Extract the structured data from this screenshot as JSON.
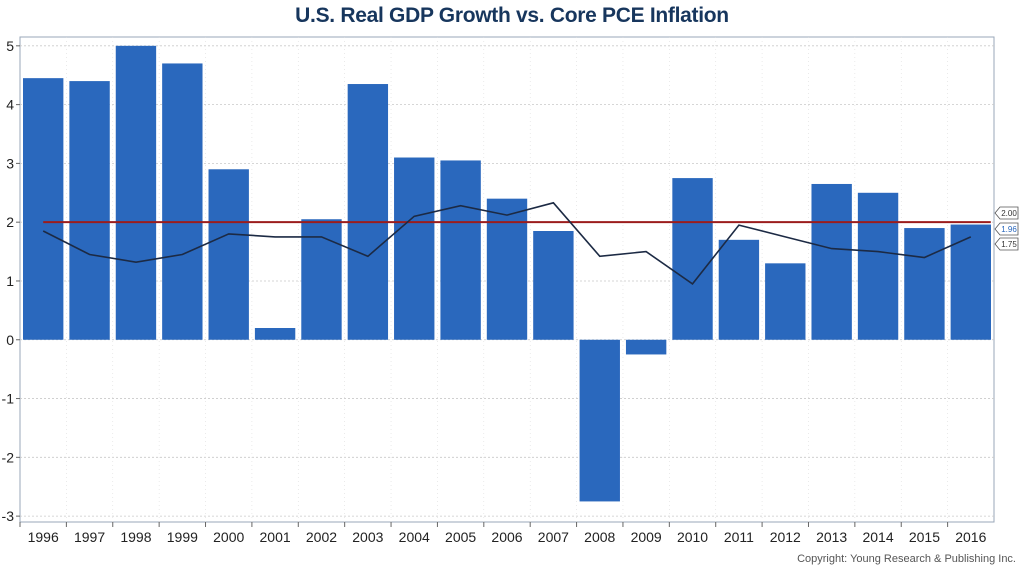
{
  "title": "U.S. Real GDP Growth vs. Core PCE Inflation",
  "copyright": "Copyright: Young Research & Publishing Inc.",
  "colors": {
    "bars": "#2a68bd",
    "inflation_line": "#1c2a44",
    "target_line": "#9b1c1c",
    "title": "#17365d"
  },
  "chart_data": {
    "type": "bar",
    "title": "U.S. Real GDP Growth vs. Core PCE Inflation",
    "categories": [
      "1996",
      "1997",
      "1998",
      "1999",
      "2000",
      "2001",
      "2002",
      "2003",
      "2004",
      "2005",
      "2006",
      "2007",
      "2008",
      "2009",
      "2010",
      "2011",
      "2012",
      "2013",
      "2014",
      "2015",
      "2016"
    ],
    "ylim": [
      -3.1,
      5.15
    ],
    "yticks": [
      5,
      4,
      3,
      2,
      1,
      0,
      -1,
      -2,
      -3
    ],
    "grid": true,
    "series": [
      {
        "kind": "bar",
        "values": [
          4.45,
          4.4,
          5.0,
          4.7,
          2.9,
          0.2,
          2.05,
          4.35,
          3.1,
          3.05,
          2.4,
          1.85,
          -2.75,
          -0.25,
          2.75,
          1.7,
          1.3,
          2.65,
          2.5,
          1.9,
          1.96
        ]
      },
      {
        "kind": "line",
        "values": [
          1.85,
          1.45,
          1.32,
          1.45,
          1.8,
          1.75,
          1.75,
          1.42,
          2.1,
          2.28,
          2.12,
          2.33,
          1.42,
          1.5,
          0.95,
          1.95,
          1.75,
          1.55,
          1.5,
          1.4,
          1.75
        ]
      },
      {
        "kind": "hline",
        "value": 2.0
      }
    ],
    "end_labels": [
      "2.00",
      "1.96",
      "1.75"
    ]
  }
}
